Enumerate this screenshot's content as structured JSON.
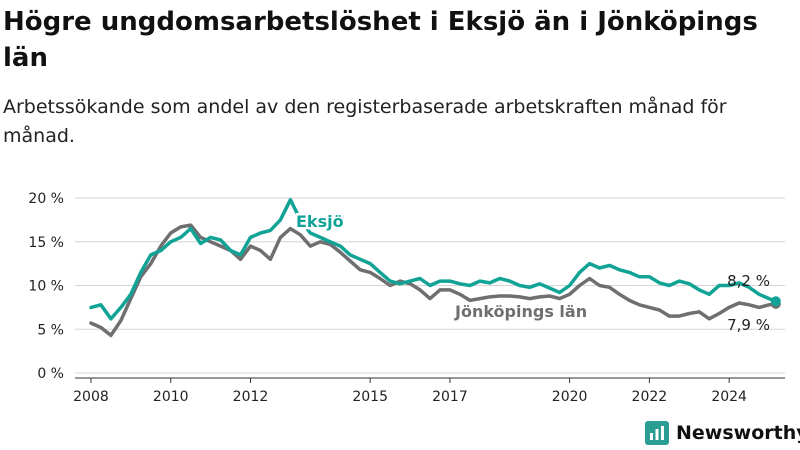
{
  "title": "Högre ungdomsarbetslöshet i Eksjö än i Jönköpings län",
  "subtitle": "Arbetssökande som andel av den registerbaserade arbetskraften månad för månad.",
  "brand": {
    "name": "Newsworthy",
    "icon": "newsworthy-logo-icon",
    "color": "#2b9e93"
  },
  "colors": {
    "eksjo": "#11a396",
    "lan": "#6f6f72"
  },
  "chart_data": {
    "type": "line",
    "ylim": [
      0,
      20
    ],
    "yticks": [
      0,
      5,
      10,
      15,
      20
    ],
    "ytick_labels": [
      "0 %",
      "5 %",
      "10 %",
      "15 %",
      "20 %"
    ],
    "xlim": [
      2007.6,
      2025.4
    ],
    "xticks": [
      2008,
      2010,
      2012,
      2015,
      2017,
      2020,
      2022,
      2024
    ],
    "xtick_labels": [
      "2008",
      "2010",
      "2012",
      "2015",
      "2017",
      "2020",
      "2022",
      "2024"
    ],
    "grid": "horizontal",
    "series": [
      {
        "name": "Eksjö",
        "end_label": "8,2 %",
        "points": [
          [
            2008.0,
            7.5
          ],
          [
            2008.25,
            7.8
          ],
          [
            2008.5,
            6.2
          ],
          [
            2008.75,
            7.5
          ],
          [
            2009.0,
            9.0
          ],
          [
            2009.25,
            11.5
          ],
          [
            2009.5,
            13.5
          ],
          [
            2009.75,
            14.0
          ],
          [
            2010.0,
            15.0
          ],
          [
            2010.25,
            15.5
          ],
          [
            2010.5,
            16.5
          ],
          [
            2010.75,
            14.8
          ],
          [
            2011.0,
            15.5
          ],
          [
            2011.25,
            15.2
          ],
          [
            2011.5,
            14.0
          ],
          [
            2011.75,
            13.5
          ],
          [
            2012.0,
            15.5
          ],
          [
            2012.25,
            16.0
          ],
          [
            2012.5,
            16.3
          ],
          [
            2012.75,
            17.5
          ],
          [
            2013.0,
            19.8
          ],
          [
            2013.25,
            17.5
          ],
          [
            2013.5,
            16.0
          ],
          [
            2013.75,
            15.5
          ],
          [
            2014.0,
            15.0
          ],
          [
            2014.25,
            14.5
          ],
          [
            2014.5,
            13.5
          ],
          [
            2014.75,
            13.0
          ],
          [
            2015.0,
            12.5
          ],
          [
            2015.25,
            11.5
          ],
          [
            2015.5,
            10.5
          ],
          [
            2015.75,
            10.2
          ],
          [
            2016.0,
            10.5
          ],
          [
            2016.25,
            10.8
          ],
          [
            2016.5,
            10.0
          ],
          [
            2016.75,
            10.5
          ],
          [
            2017.0,
            10.5
          ],
          [
            2017.25,
            10.2
          ],
          [
            2017.5,
            10.0
          ],
          [
            2017.75,
            10.5
          ],
          [
            2018.0,
            10.3
          ],
          [
            2018.25,
            10.8
          ],
          [
            2018.5,
            10.5
          ],
          [
            2018.75,
            10.0
          ],
          [
            2019.0,
            9.8
          ],
          [
            2019.25,
            10.2
          ],
          [
            2019.5,
            9.7
          ],
          [
            2019.75,
            9.2
          ],
          [
            2020.0,
            10.0
          ],
          [
            2020.25,
            11.5
          ],
          [
            2020.5,
            12.5
          ],
          [
            2020.75,
            12.0
          ],
          [
            2021.0,
            12.3
          ],
          [
            2021.25,
            11.8
          ],
          [
            2021.5,
            11.5
          ],
          [
            2021.75,
            11.0
          ],
          [
            2022.0,
            11.0
          ],
          [
            2022.25,
            10.3
          ],
          [
            2022.5,
            10.0
          ],
          [
            2022.75,
            10.5
          ],
          [
            2023.0,
            10.2
          ],
          [
            2023.25,
            9.5
          ],
          [
            2023.5,
            9.0
          ],
          [
            2023.75,
            10.0
          ],
          [
            2024.0,
            10.0
          ],
          [
            2024.25,
            10.3
          ],
          [
            2024.5,
            9.8
          ],
          [
            2024.75,
            9.0
          ],
          [
            2025.0,
            8.5
          ],
          [
            2025.17,
            8.2
          ]
        ]
      },
      {
        "name": "Jönköpings län",
        "end_label": "7,9 %",
        "points": [
          [
            2008.0,
            5.7
          ],
          [
            2008.25,
            5.2
          ],
          [
            2008.5,
            4.3
          ],
          [
            2008.75,
            6.0
          ],
          [
            2009.0,
            8.5
          ],
          [
            2009.25,
            11.0
          ],
          [
            2009.5,
            12.5
          ],
          [
            2009.75,
            14.5
          ],
          [
            2010.0,
            16.0
          ],
          [
            2010.25,
            16.7
          ],
          [
            2010.5,
            16.9
          ],
          [
            2010.75,
            15.5
          ],
          [
            2011.0,
            15.0
          ],
          [
            2011.25,
            14.5
          ],
          [
            2011.5,
            14.0
          ],
          [
            2011.75,
            13.0
          ],
          [
            2012.0,
            14.5
          ],
          [
            2012.25,
            14.0
          ],
          [
            2012.5,
            13.0
          ],
          [
            2012.75,
            15.5
          ],
          [
            2013.0,
            16.5
          ],
          [
            2013.25,
            15.8
          ],
          [
            2013.5,
            14.5
          ],
          [
            2013.75,
            15.0
          ],
          [
            2014.0,
            14.7
          ],
          [
            2014.25,
            13.8
          ],
          [
            2014.5,
            12.8
          ],
          [
            2014.75,
            11.8
          ],
          [
            2015.0,
            11.5
          ],
          [
            2015.25,
            10.8
          ],
          [
            2015.5,
            10.0
          ],
          [
            2015.75,
            10.5
          ],
          [
            2016.0,
            10.2
          ],
          [
            2016.25,
            9.5
          ],
          [
            2016.5,
            8.5
          ],
          [
            2016.75,
            9.5
          ],
          [
            2017.0,
            9.5
          ],
          [
            2017.25,
            9.0
          ],
          [
            2017.5,
            8.3
          ],
          [
            2017.75,
            8.5
          ],
          [
            2018.0,
            8.7
          ],
          [
            2018.25,
            8.8
          ],
          [
            2018.5,
            8.8
          ],
          [
            2018.75,
            8.7
          ],
          [
            2019.0,
            8.5
          ],
          [
            2019.25,
            8.7
          ],
          [
            2019.5,
            8.8
          ],
          [
            2019.75,
            8.5
          ],
          [
            2020.0,
            9.0
          ],
          [
            2020.25,
            10.0
          ],
          [
            2020.5,
            10.8
          ],
          [
            2020.75,
            10.0
          ],
          [
            2021.0,
            9.8
          ],
          [
            2021.25,
            9.0
          ],
          [
            2021.5,
            8.3
          ],
          [
            2021.75,
            7.8
          ],
          [
            2022.0,
            7.5
          ],
          [
            2022.25,
            7.2
          ],
          [
            2022.5,
            6.5
          ],
          [
            2022.75,
            6.5
          ],
          [
            2023.0,
            6.8
          ],
          [
            2023.25,
            7.0
          ],
          [
            2023.5,
            6.2
          ],
          [
            2023.75,
            6.8
          ],
          [
            2024.0,
            7.5
          ],
          [
            2024.25,
            8.0
          ],
          [
            2024.5,
            7.8
          ],
          [
            2024.75,
            7.5
          ],
          [
            2025.0,
            7.8
          ],
          [
            2025.17,
            7.9
          ]
        ]
      }
    ]
  }
}
